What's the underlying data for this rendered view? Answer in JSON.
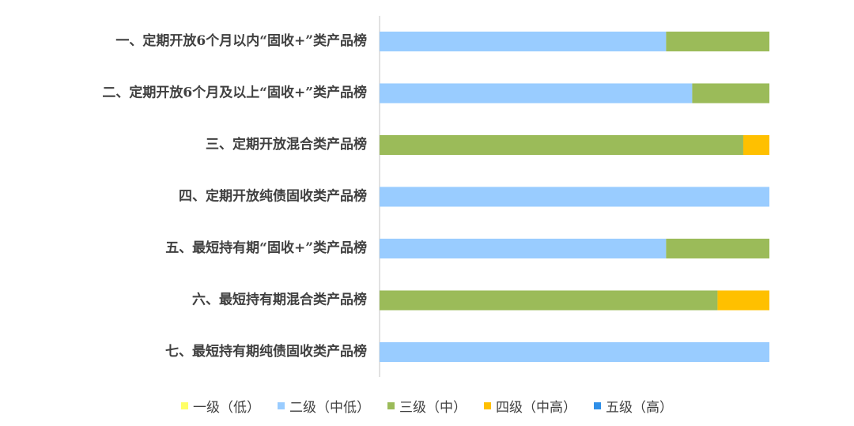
{
  "chart_data": {
    "type": "bar",
    "orientation": "horizontal",
    "stacked": true,
    "percent_stacked": true,
    "title": "",
    "xlabel": "",
    "ylabel": "",
    "xlim": [
      0,
      100
    ],
    "grid": false,
    "legend_position": "bottom",
    "categories": [
      "一、定期开放6个月以内“固收+”类产品榜",
      "二、定期开放6个月及以上“固收+”类产品榜",
      "三、定期开放混合类产品榜",
      "四、定期开放纯债固收类产品榜",
      "五、最短持有期“固收+”类产品榜",
      "六、最短持有期混合类产品榜",
      "七、最短持有期纯债固收类产品榜"
    ],
    "series": [
      {
        "name": "一级（低）",
        "color": "#FFFF66",
        "values": [
          0,
          0,
          0,
          0,
          0,
          0,
          0
        ]
      },
      {
        "name": "二级（中低）",
        "color": "#99CCFF",
        "values": [
          73.5,
          80.2,
          0,
          100,
          73.5,
          0,
          100
        ]
      },
      {
        "name": "三级（中）",
        "color": "#9BBB59",
        "values": [
          26.5,
          19.8,
          93.3,
          0,
          26.5,
          86.7,
          0
        ]
      },
      {
        "name": "四级（中高）",
        "color": "#FFC000",
        "values": [
          0,
          0,
          6.7,
          0,
          0,
          13.3,
          0
        ]
      },
      {
        "name": "五级（高）",
        "color": "#2F8FE8",
        "values": [
          0,
          0,
          0,
          0,
          0,
          0,
          0
        ]
      }
    ]
  }
}
